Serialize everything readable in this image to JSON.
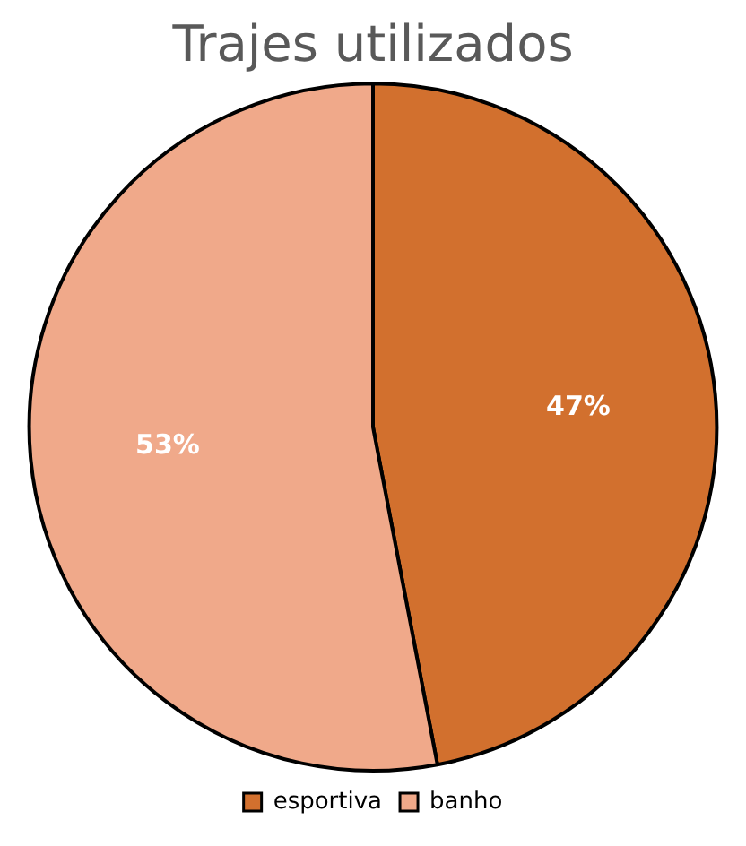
{
  "chart_data": {
    "type": "pie",
    "title": "Trajes utilizados",
    "categories": [
      "esportiva",
      "banho"
    ],
    "values": [
      47,
      53
    ],
    "colors": [
      "#d2702e",
      "#f0a98a"
    ],
    "value_labels": [
      "47%",
      "53%"
    ],
    "legend": "bottom"
  }
}
